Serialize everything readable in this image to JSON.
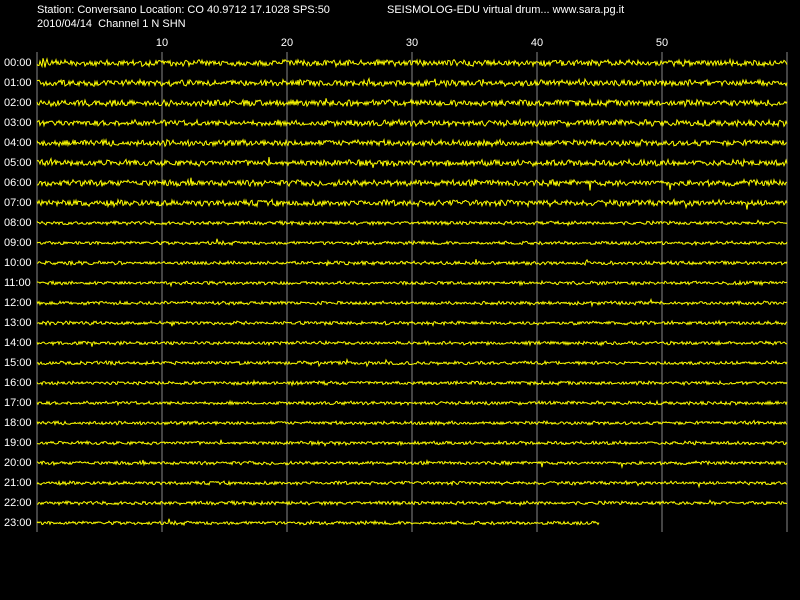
{
  "chart_data": {
    "type": "drum",
    "title": "Station: Conversano Location: CO 40.9712 17.1028 SPS:50",
    "subtitle": "2010/04/14  Channel 1 N SHN",
    "header_right": "SEISMOLOG-EDU virtual drum... www.sara.pg.it",
    "xlim": [
      0,
      60
    ],
    "xticks": [
      10,
      20,
      30,
      40,
      50
    ],
    "grid": true,
    "color": "#ffff00",
    "categories": [
      "00:00",
      "01:00",
      "02:00",
      "03:00",
      "04:00",
      "05:00",
      "06:00",
      "07:00",
      "08:00",
      "09:00",
      "10:00",
      "11:00",
      "12:00",
      "13:00",
      "14:00",
      "15:00",
      "16:00",
      "17:00",
      "18:00",
      "19:00",
      "20:00",
      "21:00",
      "22:00",
      "23:00"
    ],
    "values": [
      60,
      60,
      60,
      60,
      60,
      60,
      60,
      60,
      60,
      60,
      60,
      60,
      60,
      60,
      60,
      60,
      60,
      60,
      60,
      60,
      60,
      60,
      60,
      45
    ]
  }
}
